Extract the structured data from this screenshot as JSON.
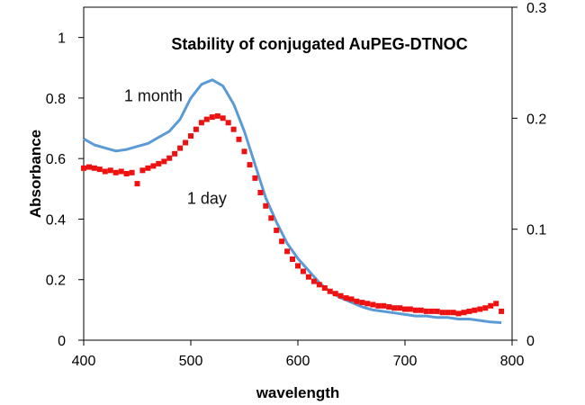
{
  "chart_data": {
    "type": "line",
    "title": "Stability of conjugated AuPEG-DTNOC",
    "xlabel": "wavelength",
    "ylabel": "Absorbance",
    "y2label": "",
    "xlim": [
      400,
      800
    ],
    "ylim": [
      0,
      1.1
    ],
    "y2lim": [
      0,
      0.3
    ],
    "x_ticks": [
      400,
      500,
      600,
      700,
      800
    ],
    "y_ticks": [
      0,
      0.2,
      0.4,
      0.6,
      0.8,
      1
    ],
    "y2_ticks": [
      0,
      0.1,
      0.2,
      0.3
    ],
    "grid": false,
    "annotations": [
      {
        "text": "1 month",
        "x": 465,
        "y": 0.79
      },
      {
        "text": "1 day",
        "x": 515,
        "y": 0.45
      }
    ],
    "colors": {
      "month": "#5b9bd5",
      "day": "#ee1111"
    },
    "series": [
      {
        "label_ref": "1 month",
        "style": "line",
        "axis": "left",
        "x": [
          400,
          410,
          420,
          430,
          440,
          450,
          460,
          470,
          480,
          490,
          500,
          510,
          520,
          530,
          540,
          550,
          560,
          570,
          580,
          590,
          600,
          610,
          620,
          630,
          640,
          650,
          660,
          670,
          680,
          690,
          700,
          710,
          720,
          730,
          740,
          750,
          760,
          770,
          780,
          790
        ],
        "y": [
          0.665,
          0.645,
          0.635,
          0.625,
          0.63,
          0.64,
          0.65,
          0.67,
          0.69,
          0.73,
          0.8,
          0.845,
          0.86,
          0.84,
          0.78,
          0.69,
          0.58,
          0.47,
          0.39,
          0.32,
          0.27,
          0.23,
          0.19,
          0.16,
          0.14,
          0.125,
          0.11,
          0.1,
          0.095,
          0.09,
          0.085,
          0.08,
          0.08,
          0.075,
          0.075,
          0.07,
          0.07,
          0.065,
          0.06,
          0.058
        ]
      },
      {
        "label_ref": "1 day",
        "style": "markers",
        "axis": "right",
        "x": [
          400,
          405,
          410,
          415,
          420,
          425,
          430,
          435,
          440,
          445,
          450,
          455,
          460,
          465,
          470,
          475,
          480,
          485,
          490,
          495,
          500,
          505,
          510,
          515,
          520,
          525,
          530,
          535,
          540,
          545,
          550,
          555,
          560,
          565,
          570,
          575,
          580,
          585,
          590,
          595,
          600,
          605,
          610,
          615,
          620,
          625,
          630,
          635,
          640,
          645,
          650,
          655,
          660,
          665,
          670,
          675,
          680,
          685,
          690,
          695,
          700,
          705,
          710,
          715,
          720,
          725,
          730,
          735,
          740,
          745,
          750,
          755,
          760,
          765,
          770,
          775,
          780,
          785,
          790
        ],
        "y": [
          0.155,
          0.156,
          0.155,
          0.154,
          0.152,
          0.153,
          0.151,
          0.152,
          0.15,
          0.151,
          0.141,
          0.153,
          0.155,
          0.157,
          0.159,
          0.161,
          0.164,
          0.168,
          0.173,
          0.178,
          0.184,
          0.19,
          0.196,
          0.199,
          0.201,
          0.202,
          0.2,
          0.196,
          0.19,
          0.181,
          0.17,
          0.158,
          0.146,
          0.133,
          0.121,
          0.11,
          0.099,
          0.089,
          0.08,
          0.073,
          0.067,
          0.062,
          0.057,
          0.053,
          0.05,
          0.047,
          0.044,
          0.042,
          0.04,
          0.038,
          0.037,
          0.035,
          0.034,
          0.033,
          0.032,
          0.031,
          0.031,
          0.03,
          0.029,
          0.029,
          0.028,
          0.028,
          0.027,
          0.027,
          0.026,
          0.026,
          0.026,
          0.025,
          0.025,
          0.025,
          0.024,
          0.025,
          0.026,
          0.027,
          0.028,
          0.029,
          0.031,
          0.033,
          0.026
        ]
      }
    ]
  }
}
